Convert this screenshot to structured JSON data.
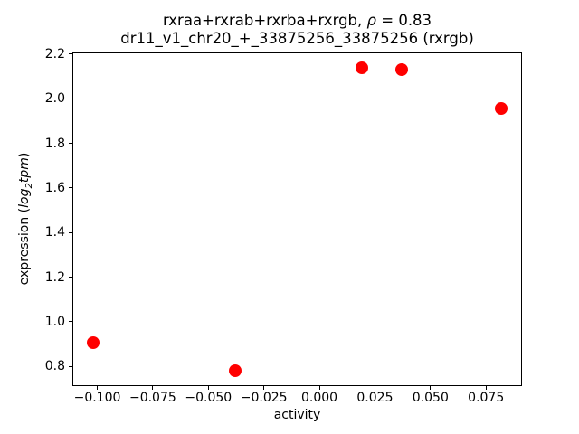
{
  "title": {
    "line1_prefix": "rxraa+rxrab+rxrba+rxrgb, ",
    "line1_rho": "ρ",
    "line1_suffix": " = 0.83",
    "line2": "dr11_v1_chr20_+_33875256_33875256 (rxrgb)"
  },
  "axes": {
    "xlabel": "activity",
    "ylabel_prefix": "expression (",
    "ylabel_log": "log",
    "ylabel_sub": "2",
    "ylabel_var": "tpm",
    "ylabel_suffix": ")"
  },
  "chart_data": {
    "type": "scatter",
    "title": "rxraa+rxrab+rxrba+rxrgb, ρ = 0.83",
    "subtitle": "dr11_v1_chr20_+_33875256_33875256 (rxrgb)",
    "xlabel": "activity",
    "ylabel": "expression (log2 tpm)",
    "points": [
      {
        "x": -0.102,
        "y": 0.905
      },
      {
        "x": -0.038,
        "y": 0.78
      },
      {
        "x": 0.019,
        "y": 2.14
      },
      {
        "x": 0.037,
        "y": 2.13
      },
      {
        "x": 0.082,
        "y": 1.955
      }
    ],
    "xlim": [
      -0.1112,
      0.0912
    ],
    "ylim": [
      0.712,
      2.208
    ],
    "xticks": [
      -0.1,
      -0.075,
      -0.05,
      -0.025,
      0.0,
      0.025,
      0.05,
      0.075
    ],
    "xtick_labels": [
      "−0.100",
      "−0.075",
      "−0.050",
      "−0.025",
      "0.000",
      "0.025",
      "0.050",
      "0.075"
    ],
    "yticks": [
      0.8,
      1.0,
      1.2,
      1.4,
      1.6,
      1.8,
      2.0,
      2.2
    ],
    "ytick_labels": [
      "0.8",
      "1.0",
      "1.2",
      "1.4",
      "1.6",
      "1.8",
      "2.0",
      "2.2"
    ],
    "marker_color": "#ff0000",
    "marker_size_px": 14,
    "grid": false,
    "legend": null,
    "background_color": "#ffffff",
    "spine_color": "#000000"
  }
}
